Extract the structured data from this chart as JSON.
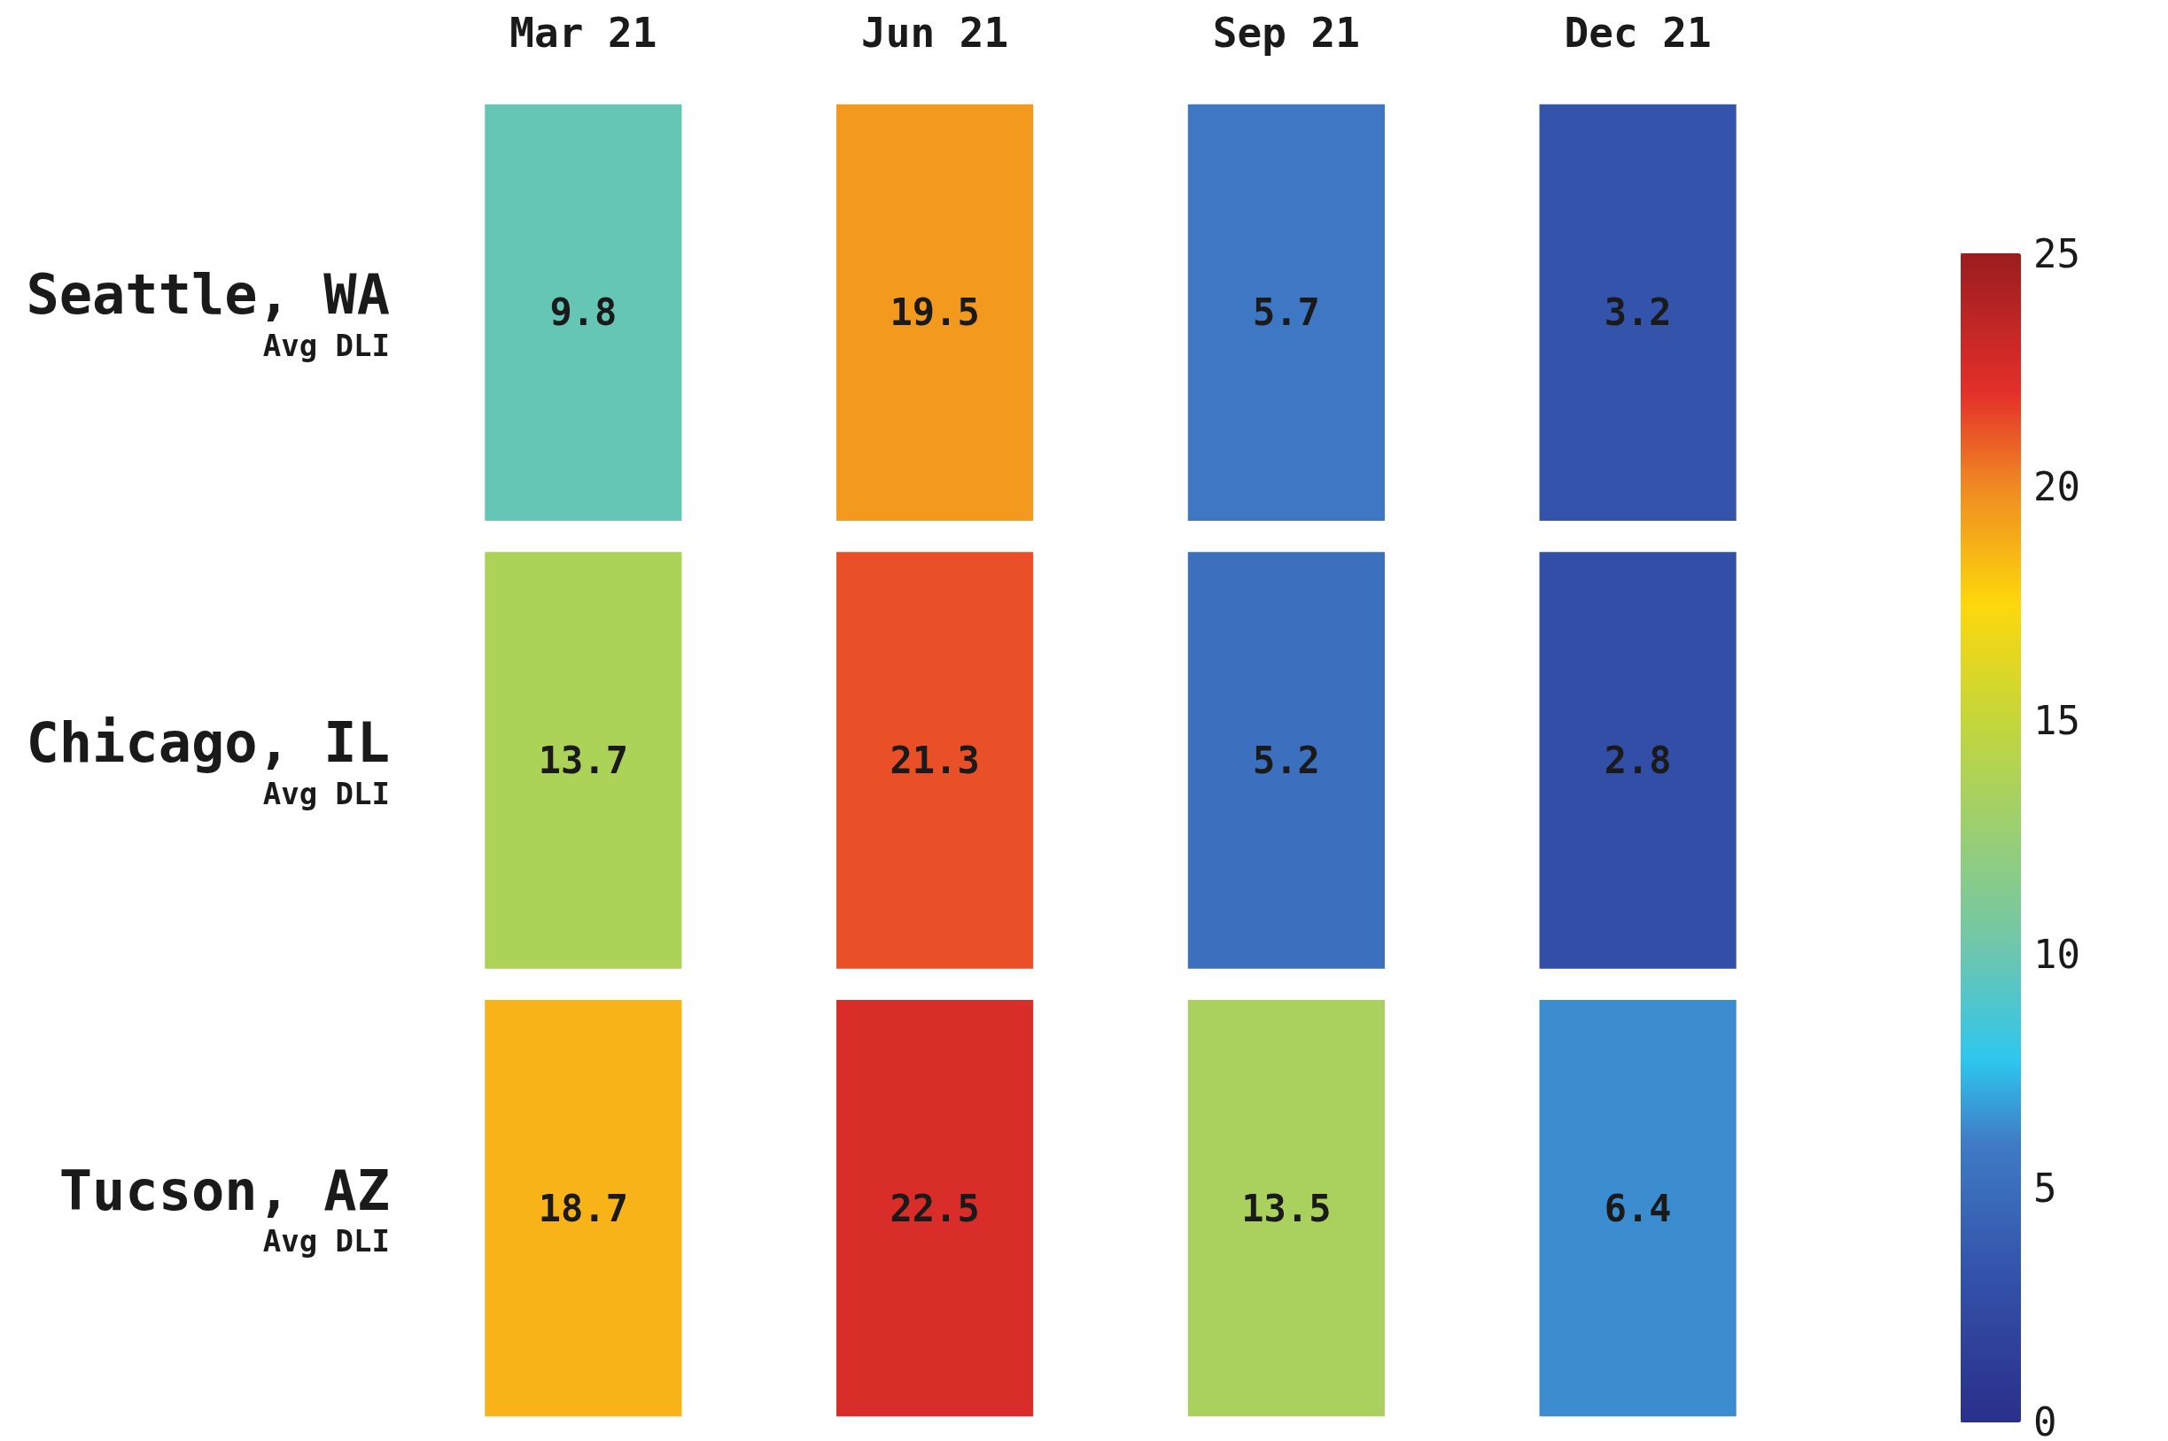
{
  "chart_data": {
    "type": "heatmap",
    "categories": [
      "Mar 21",
      "Jun 21",
      "Sep 21",
      "Dec 21"
    ],
    "y_categories": [
      "Seattle, WA",
      "Chicago, IL",
      "Tucson, AZ"
    ],
    "annotations": [
      "Avg DLI",
      "Avg DLI",
      "Avg DLI"
    ],
    "cells": [
      [
        9.8,
        19.5,
        5.7,
        3.2
      ],
      [
        13.7,
        21.3,
        5.2,
        2.8
      ],
      [
        18.7,
        22.5,
        13.5,
        6.4
      ]
    ],
    "data_labels": true,
    "clim": [
      0,
      25
    ],
    "cticks": [
      0,
      5,
      10,
      15,
      20,
      25
    ]
  }
}
